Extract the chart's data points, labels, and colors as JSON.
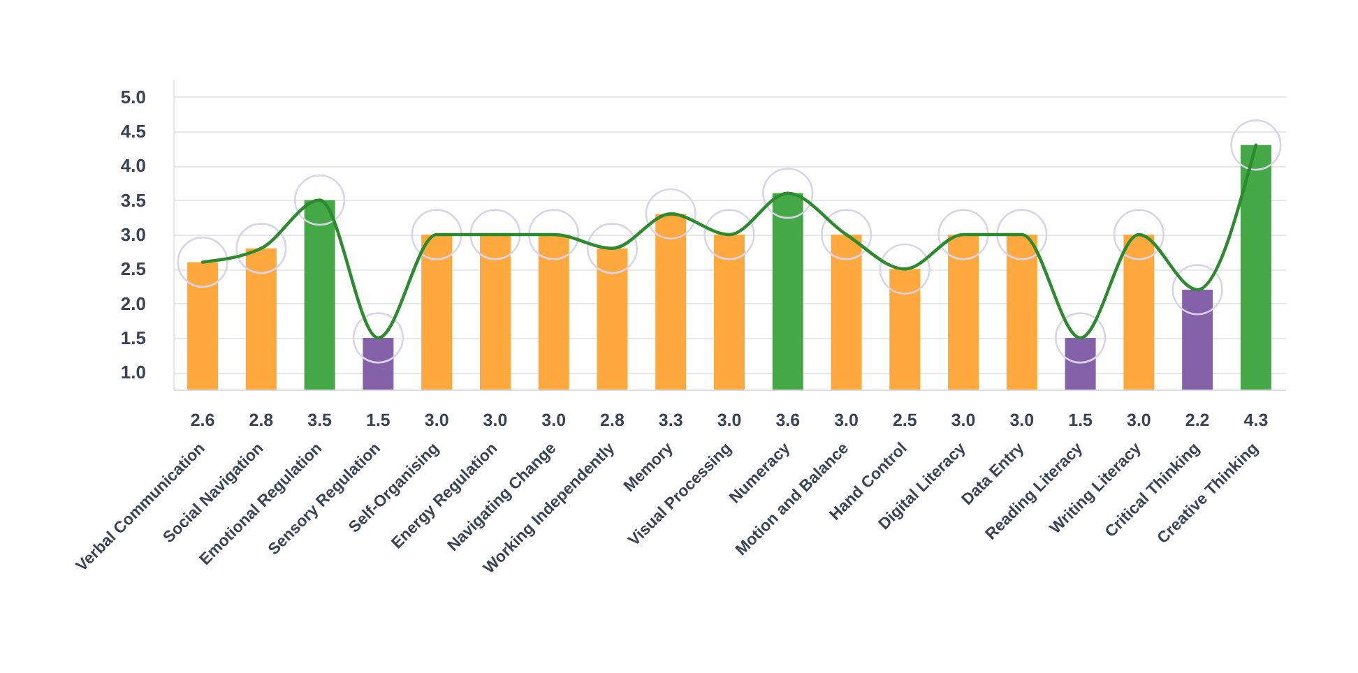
{
  "chart_data": {
    "type": "bar",
    "categories": [
      "Verbal Communication",
      "Social Navigation",
      "Emotional Regulation",
      "Sensory Regulation",
      "Self-Organising",
      "Energy Regulation",
      "Navigating Change",
      "Working Independently",
      "Memory",
      "Visual Processing",
      "Numeracy",
      "Motion and Balance",
      "Hand Control",
      "Digital Literacy",
      "Data Entry",
      "Reading Literacy",
      "Writing Literacy",
      "Critical Thinking",
      "Creative Thinking"
    ],
    "series": [
      {
        "colors": [
          "#ffa83e",
          "#ffa83e",
          "#43a845",
          "#8561a9",
          "#ffa83e",
          "#ffa83e",
          "#ffa83e",
          "#ffa83e",
          "#ffa83e",
          "#ffa83e",
          "#43a845",
          "#ffa83e",
          "#ffa83e",
          "#ffa83e",
          "#ffa83e",
          "#8561a9",
          "#ffa83e",
          "#8561a9",
          "#43a845"
        ],
        "values": [
          2.6,
          2.8,
          3.5,
          1.5,
          3.0,
          3.0,
          3.0,
          2.8,
          3.3,
          3.0,
          3.6,
          3.0,
          2.5,
          3.0,
          3.0,
          1.5,
          3.0,
          2.2,
          4.3
        ],
        "value_labels": [
          "2.6",
          "2.8",
          "3.5",
          "1.5",
          "3.0",
          "3.0",
          "3.0",
          "2.8",
          "3.3",
          "3.0",
          "3.6",
          "3.0",
          "2.5",
          "3.0",
          "3.0",
          "1.5",
          "3.0",
          "2.2",
          "4.3"
        ]
      },
      {
        "type": "line",
        "color": "#2c8a2f",
        "marker": "circle",
        "values": [
          2.6,
          2.8,
          3.5,
          1.5,
          3.0,
          3.0,
          3.0,
          2.8,
          3.3,
          3.0,
          3.6,
          3.0,
          2.5,
          3.0,
          3.0,
          1.5,
          3.0,
          2.2,
          4.3
        ]
      }
    ],
    "ylim": [
      0.75,
      5.25
    ],
    "yticks": [
      {
        "value": 1,
        "label": "1.0"
      },
      1.5,
      {
        "value": 2,
        "label": "2.0"
      },
      2.5,
      {
        "value": 3,
        "label": "3.0"
      },
      3.5,
      {
        "value": 4,
        "label": "4.0"
      },
      4.5,
      {
        "value": 5,
        "label": "5.0"
      }
    ],
    "grid": "y"
  }
}
